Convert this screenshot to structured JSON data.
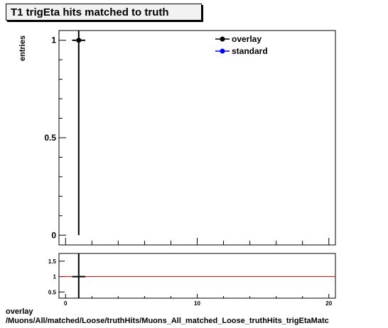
{
  "title": "T1 trigEta hits matched to truth",
  "footer": {
    "line1": "overlay",
    "line2": "/Muons/All/matched/Loose/truthHits/Muons_All_matched_Loose_truthHits_trigEtaMatc"
  },
  "colors": {
    "overlay": "#000000",
    "standard": "#0000ff",
    "ratio_line": "#cc0000"
  },
  "chart_data": [
    {
      "type": "scatter",
      "ylabel": "entries",
      "xlim": [
        -0.5,
        20.5
      ],
      "ylim": [
        -0.05,
        1.05
      ],
      "yticks": [
        0,
        0.5,
        1
      ],
      "ytick_labels": [
        "0",
        "0.5",
        "1"
      ],
      "legend": {
        "placement": "top-right",
        "entries": [
          "overlay",
          "standard"
        ]
      },
      "series": [
        {
          "name": "overlay",
          "x": [
            1
          ],
          "y": [
            1
          ],
          "xerr": [
            0.5
          ],
          "yerr": [
            1
          ]
        },
        {
          "name": "standard",
          "x": [],
          "y": []
        }
      ]
    },
    {
      "type": "line",
      "xlim": [
        -0.5,
        20.5
      ],
      "ylim": [
        0.3,
        1.75
      ],
      "yticks": [
        0.5,
        1,
        1.5
      ],
      "ytick_labels": [
        "0.5",
        "1",
        "1.5"
      ],
      "xticks": [
        0,
        10,
        20
      ],
      "xtick_labels": [
        "0",
        "10",
        "20"
      ],
      "reference_line": 1,
      "series": [
        {
          "name": "ratio",
          "x": [
            1
          ],
          "y": [
            1
          ],
          "xerr": [
            0.5
          ]
        }
      ]
    }
  ]
}
